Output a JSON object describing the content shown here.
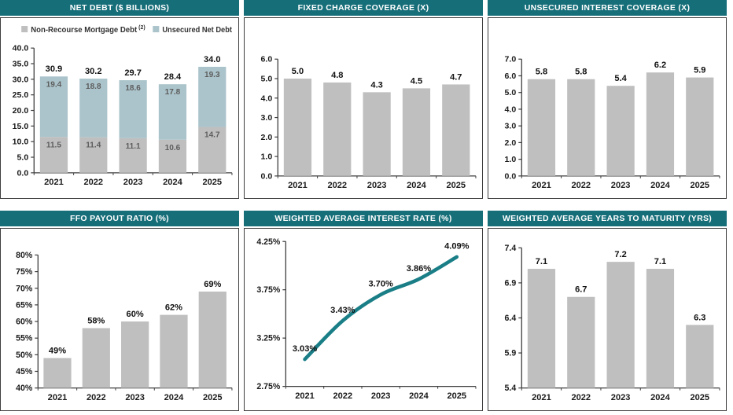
{
  "theme": {
    "header_bg": "#166e79",
    "header_text": "#ffffff",
    "bar_gray": "#bfbfbf",
    "bar_blue": "#abc4cb",
    "line_teal": "#1a7e87",
    "axis_color": "#3f3f3f",
    "panel_border": "#3e3e3e"
  },
  "chart_data": [
    {
      "type": "bar",
      "stacked": true,
      "title": "NET DEBT ($ BILLIONS)",
      "categories": [
        "2021",
        "2022",
        "2023",
        "2024",
        "2025"
      ],
      "series": [
        {
          "name": "Non-Recourse Mortgage Debt",
          "sup": "(2)",
          "color": "#bfbfbf",
          "values": [
            11.5,
            11.4,
            11.1,
            10.6,
            14.7
          ],
          "labels": [
            "11.5",
            "11.4",
            "11.1",
            "10.6",
            "14.7"
          ]
        },
        {
          "name": "Unsecured Net Debt",
          "sup": "",
          "color": "#abc4cb",
          "values": [
            19.4,
            18.8,
            18.6,
            17.8,
            19.3
          ],
          "labels": [
            "19.4",
            "18.8",
            "18.6",
            "17.8",
            "19.3"
          ]
        }
      ],
      "totals": [
        "30.9",
        "30.2",
        "29.7",
        "28.4",
        "34.0"
      ],
      "ylim": [
        0,
        40
      ],
      "yticks": [
        {
          "v": 0,
          "label": "0.0"
        },
        {
          "v": 5,
          "label": "5.0"
        },
        {
          "v": 10,
          "label": "10.0"
        },
        {
          "v": 15,
          "label": "15.0"
        },
        {
          "v": 20,
          "label": "20.0"
        },
        {
          "v": 25,
          "label": "25.0"
        },
        {
          "v": 30,
          "label": "30.0"
        },
        {
          "v": 35,
          "label": "35.0"
        },
        {
          "v": 40,
          "label": "40.0"
        }
      ],
      "legend": true,
      "legend_position": "top",
      "grid": false
    },
    {
      "type": "bar",
      "title": "FIXED CHARGE COVERAGE (X)",
      "categories": [
        "2021",
        "2022",
        "2023",
        "2024",
        "2025"
      ],
      "values": [
        5.0,
        4.8,
        4.3,
        4.5,
        4.7
      ],
      "labels": [
        "5.0",
        "4.8",
        "4.3",
        "4.5",
        "4.7"
      ],
      "color": "#bfbfbf",
      "ylim": [
        0,
        6
      ],
      "yticks": [
        {
          "v": 0,
          "label": "0.0"
        },
        {
          "v": 1,
          "label": "1.0"
        },
        {
          "v": 2,
          "label": "2.0"
        },
        {
          "v": 3,
          "label": "3.0"
        },
        {
          "v": 4,
          "label": "4.0"
        },
        {
          "v": 5,
          "label": "5.0"
        },
        {
          "v": 6,
          "label": "6.0"
        }
      ],
      "grid": false
    },
    {
      "type": "bar",
      "title": "UNSECURED INTEREST COVERAGE (X)",
      "categories": [
        "2021",
        "2022",
        "2023",
        "2024",
        "2025"
      ],
      "values": [
        5.8,
        5.8,
        5.4,
        6.2,
        5.9
      ],
      "labels": [
        "5.8",
        "5.8",
        "5.4",
        "6.2",
        "5.9"
      ],
      "color": "#bfbfbf",
      "ylim": [
        0,
        7
      ],
      "yticks": [
        {
          "v": 0,
          "label": "0.0"
        },
        {
          "v": 1,
          "label": "1.0"
        },
        {
          "v": 2,
          "label": "2.0"
        },
        {
          "v": 3,
          "label": "3.0"
        },
        {
          "v": 4,
          "label": "4.0"
        },
        {
          "v": 5,
          "label": "5.0"
        },
        {
          "v": 6,
          "label": "6.0"
        },
        {
          "v": 7,
          "label": "7.0"
        }
      ],
      "grid": false
    },
    {
      "type": "bar",
      "title": "FFO PAYOUT RATIO (%)",
      "categories": [
        "2021",
        "2022",
        "2023",
        "2024",
        "2025"
      ],
      "values": [
        49,
        58,
        60,
        62,
        69
      ],
      "labels": [
        "49%",
        "58%",
        "60%",
        "62%",
        "69%"
      ],
      "color": "#bfbfbf",
      "ylim": [
        40,
        80
      ],
      "yticks": [
        {
          "v": 40,
          "label": "40%"
        },
        {
          "v": 45,
          "label": "45%"
        },
        {
          "v": 50,
          "label": "50%"
        },
        {
          "v": 55,
          "label": "55%"
        },
        {
          "v": 60,
          "label": "60%"
        },
        {
          "v": 65,
          "label": "65%"
        },
        {
          "v": 70,
          "label": "70%"
        },
        {
          "v": 75,
          "label": "75%"
        },
        {
          "v": 80,
          "label": "80%"
        }
      ],
      "grid": false
    },
    {
      "type": "line",
      "title": "WEIGHTED AVERAGE INTEREST RATE (%)",
      "categories": [
        "2021",
        "2022",
        "2023",
        "2024",
        "2025"
      ],
      "values": [
        3.03,
        3.43,
        3.7,
        3.86,
        4.09
      ],
      "labels": [
        "3.03%",
        "3.43%",
        "3.70%",
        "3.86%",
        "4.09%"
      ],
      "color": "#1a7e87",
      "ylim": [
        2.75,
        4.25
      ],
      "yticks": [
        {
          "v": 2.75,
          "label": "2.75%"
        },
        {
          "v": 3.25,
          "label": "3.25%"
        },
        {
          "v": 3.75,
          "label": "3.75%"
        },
        {
          "v": 4.25,
          "label": "4.25%"
        }
      ],
      "grid": false
    },
    {
      "type": "bar",
      "title": "WEIGHTED AVERAGE YEARS TO MATURITY (YRS)",
      "categories": [
        "2021",
        "2022",
        "2023",
        "2024",
        "2025"
      ],
      "values": [
        7.1,
        6.7,
        7.2,
        7.1,
        6.3
      ],
      "labels": [
        "7.1",
        "6.7",
        "7.2",
        "7.1",
        "6.3"
      ],
      "color": "#bfbfbf",
      "ylim": [
        5.4,
        7.4
      ],
      "yticks": [
        {
          "v": 5.4,
          "label": "5.4"
        },
        {
          "v": 5.9,
          "label": "5.9"
        },
        {
          "v": 6.4,
          "label": "6.4"
        },
        {
          "v": 6.9,
          "label": "6.9"
        },
        {
          "v": 7.4,
          "label": "7.4"
        }
      ],
      "grid": false
    }
  ]
}
